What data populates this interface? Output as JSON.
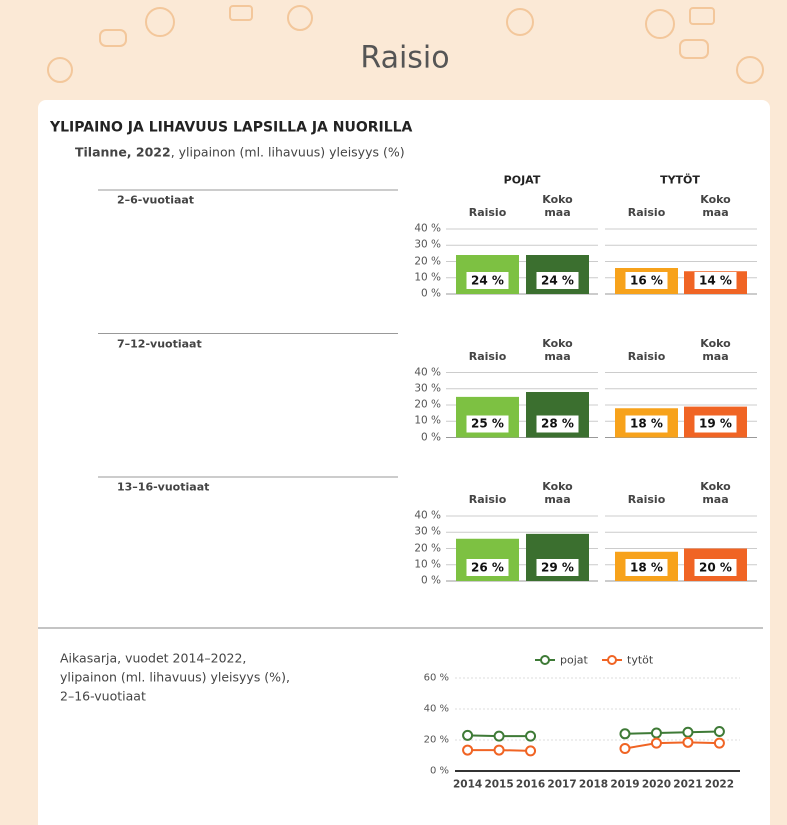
{
  "header": {
    "title": "Raisio"
  },
  "section": {
    "title": "YLIPAINO JA LIHAVUUS LAPSILLA JA NUORILLA",
    "subtitle_bold": "Tilanne, 2022",
    "subtitle": ", ylipainon (ml. lihavuus) yleisyys (%)",
    "group_headers": [
      "POJAT",
      "TYTÖT"
    ]
  },
  "chart_data": [
    {
      "type": "bar",
      "title": "2–6-vuotiaat",
      "categories": [
        "Raisio",
        "Koko maa",
        "Raisio",
        "Koko maa"
      ],
      "values": [
        24,
        24,
        16,
        14
      ],
      "value_labels": [
        "24 %",
        "24 %",
        "16 %",
        "14 %"
      ],
      "colors": [
        "#7dc142",
        "#3b6f2f",
        "#f7a21b",
        "#f06424"
      ],
      "ylim": [
        0,
        40
      ],
      "yticks": [
        {
          "value": 0,
          "label": "0 %"
        },
        {
          "value": 10,
          "label": "10 %"
        },
        {
          "value": 20,
          "label": "20 %"
        },
        {
          "value": 30,
          "label": "30 %"
        },
        {
          "value": 40,
          "label": "40 %"
        }
      ]
    },
    {
      "type": "bar",
      "title": "7–12-vuotiaat",
      "categories": [
        "Raisio",
        "Koko maa",
        "Raisio",
        "Koko maa"
      ],
      "values": [
        25,
        28,
        18,
        19
      ],
      "value_labels": [
        "25 %",
        "28 %",
        "18 %",
        "19 %"
      ],
      "colors": [
        "#7dc142",
        "#3b6f2f",
        "#f7a21b",
        "#f06424"
      ],
      "ylim": [
        0,
        40
      ],
      "yticks": [
        {
          "value": 0,
          "label": "0 %"
        },
        {
          "value": 10,
          "label": "10 %"
        },
        {
          "value": 20,
          "label": "20 %"
        },
        {
          "value": 30,
          "label": "30 %"
        },
        {
          "value": 40,
          "label": "40 %"
        }
      ]
    },
    {
      "type": "bar",
      "title": "13–16-vuotiaat",
      "categories": [
        "Raisio",
        "Koko maa",
        "Raisio",
        "Koko maa"
      ],
      "values": [
        26,
        29,
        18,
        20
      ],
      "value_labels": [
        "26 %",
        "29 %",
        "18 %",
        "20 %"
      ],
      "colors": [
        "#7dc142",
        "#3b6f2f",
        "#f7a21b",
        "#f06424"
      ],
      "ylim": [
        0,
        40
      ],
      "yticks": [
        {
          "value": 0,
          "label": "0 %"
        },
        {
          "value": 10,
          "label": "10 %"
        },
        {
          "value": 20,
          "label": "20 %"
        },
        {
          "value": 30,
          "label": "30 %"
        },
        {
          "value": 40,
          "label": "40 %"
        }
      ]
    },
    {
      "type": "line",
      "title": [
        "Aikasarja, vuodet 2014–2022,",
        "ylipainon (ml. lihavuus) yleisyys (%),",
        "2–16-vuotiaat"
      ],
      "x": [
        2014,
        2015,
        2016,
        2017,
        2018,
        2019,
        2020,
        2021,
        2022
      ],
      "xlim": [
        2013.6,
        2022.4
      ],
      "series": [
        {
          "name": "pojat",
          "color": "#3e7a36",
          "values": [
            23,
            22.5,
            22.5,
            null,
            null,
            24,
            24.5,
            25,
            25.5
          ]
        },
        {
          "name": "tytöt",
          "color": "#f06424",
          "values": [
            13.5,
            13.5,
            13,
            null,
            null,
            14.5,
            18,
            18.5,
            18
          ]
        }
      ],
      "ylim": [
        0,
        60
      ],
      "yticks": [
        {
          "value": 0,
          "label": "0 %"
        },
        {
          "value": 20,
          "label": "20 %"
        },
        {
          "value": 40,
          "label": "40 %"
        },
        {
          "value": 60,
          "label": "60 %"
        }
      ],
      "legend": "top"
    }
  ]
}
